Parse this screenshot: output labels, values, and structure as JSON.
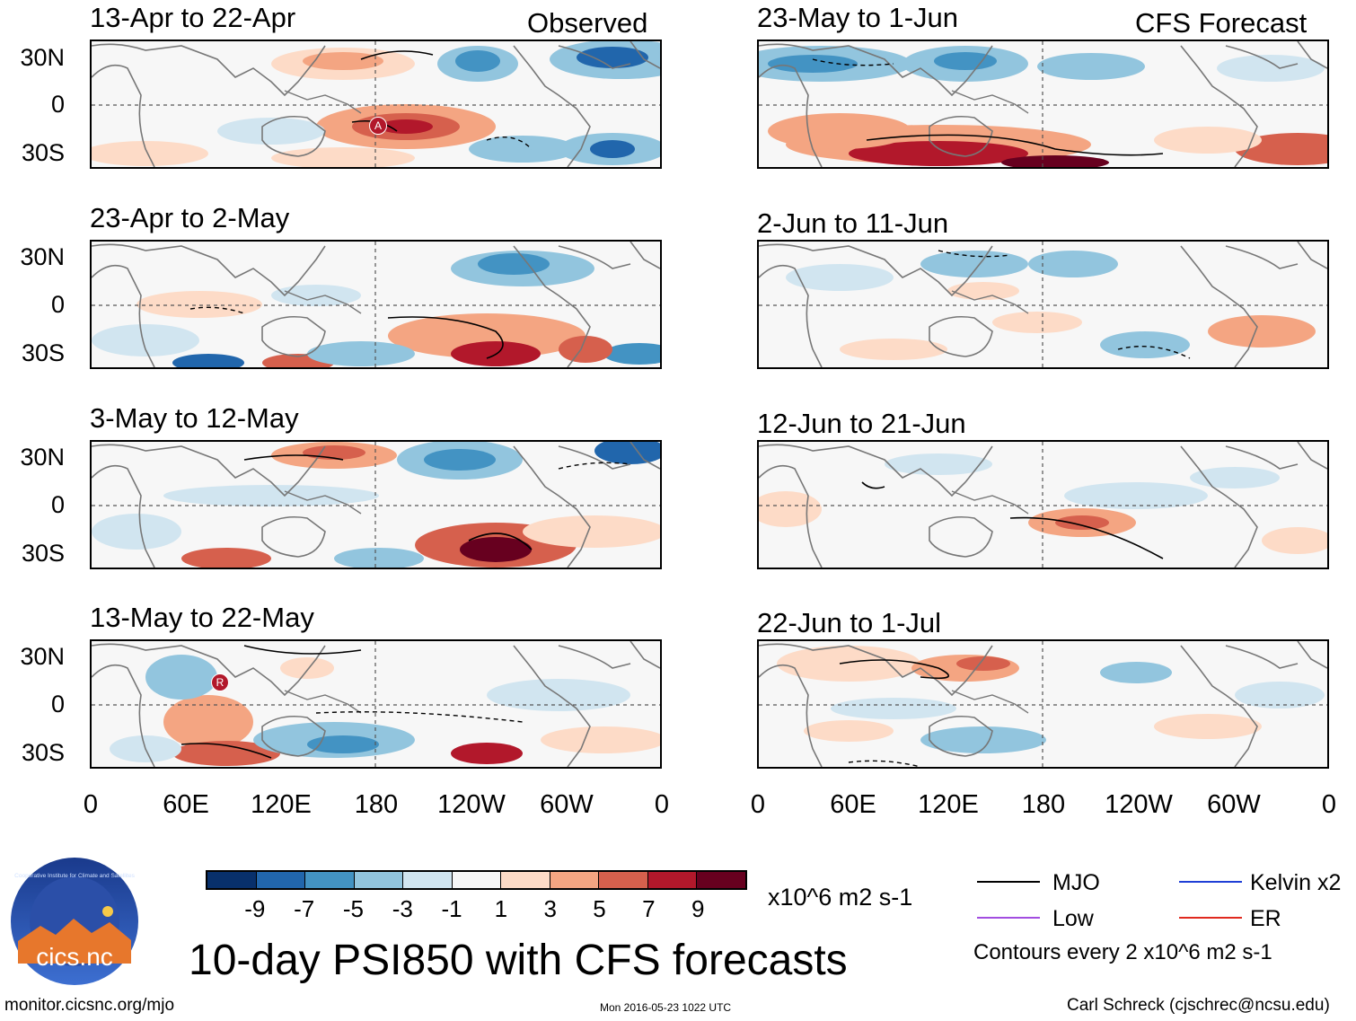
{
  "panels_observed": [
    {
      "title": "13-Apr to 22-Apr",
      "tag": "Observed"
    },
    {
      "title": "23-Apr to 2-May",
      "tag": ""
    },
    {
      "title": "3-May to 12-May",
      "tag": ""
    },
    {
      "title": "13-May to 22-May",
      "tag": ""
    }
  ],
  "panels_forecast": [
    {
      "title": "23-May to 1-Jun",
      "tag": "CFS Forecast"
    },
    {
      "title": "2-Jun to 11-Jun",
      "tag": ""
    },
    {
      "title": "12-Jun to 21-Jun",
      "tag": ""
    },
    {
      "title": "22-Jun to 1-Jul",
      "tag": ""
    }
  ],
  "y_labels": [
    "30N",
    "0",
    "30S"
  ],
  "x_labels": [
    "0",
    "60E",
    "120E",
    "180",
    "120W",
    "60W",
    "0"
  ],
  "markers": {
    "A": "A",
    "R": "R"
  },
  "colorbar": {
    "labels": [
      "-9",
      "-7",
      "-5",
      "-3",
      "-1",
      "1",
      "3",
      "5",
      "7",
      "9"
    ],
    "units": "x10^6 m2 s-1",
    "colors": [
      "#08306b",
      "#2166ac",
      "#4393c3",
      "#92c5de",
      "#d1e5f0",
      "#f7f7f7",
      "#fddbc7",
      "#f4a582",
      "#d6604d",
      "#b2182b",
      "#67001f"
    ]
  },
  "legend": {
    "items": [
      {
        "label": "MJO",
        "color": "#000000"
      },
      {
        "label": "Kelvin x2",
        "color": "#1f3fd6"
      },
      {
        "label": "Low",
        "color": "#a24de0"
      },
      {
        "label": "ER",
        "color": "#e02a1f"
      }
    ],
    "contour_note": "Contours every 2 x10^6 m2 s-1"
  },
  "logo": {
    "text": "cics.nc",
    "ring_text": "Cooperative Institute for Climate and Satellites"
  },
  "main_title": "10-day PSI850 with CFS forecasts",
  "footer": {
    "url": "monitor.cicsnc.org/mjo",
    "timestamp": "Mon 2016-05-23 1022 UTC",
    "author": "Carl Schreck (cjschrec@ncsu.edu)"
  }
}
